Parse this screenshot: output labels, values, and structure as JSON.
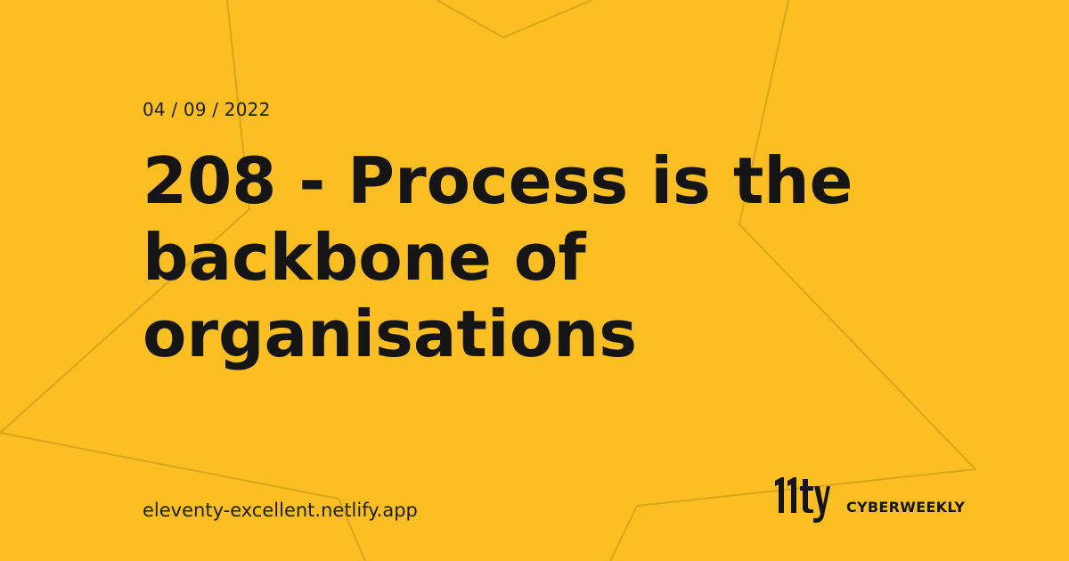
{
  "date": "04 / 09 / 2022",
  "title": "208 - Process is the backbone of organisations",
  "site_url": "eleventy-excellent.netlify.app",
  "brand": {
    "logo_text": "11ty",
    "name": "CYBERWEEKLY"
  },
  "colors": {
    "background": "#fbbf24",
    "text": "#151515",
    "star_outline": "#d8a51b"
  }
}
